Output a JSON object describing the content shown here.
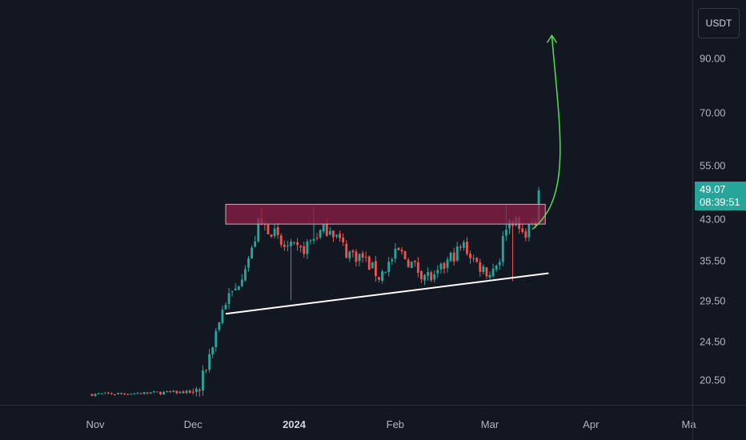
{
  "currency": "USDT",
  "price_axis": {
    "ticks": [
      {
        "label": "90.00",
        "value": 90
      },
      {
        "label": "70.00",
        "value": 70
      },
      {
        "label": "55.00",
        "value": 55
      },
      {
        "label": "43.00",
        "value": 43
      },
      {
        "label": "35.50",
        "value": 35.5
      },
      {
        "label": "29.50",
        "value": 29.5
      },
      {
        "label": "24.50",
        "value": 24.5
      },
      {
        "label": "20.50",
        "value": 20.5
      }
    ]
  },
  "time_axis": {
    "ticks": [
      {
        "label": "Nov",
        "date": "2023-11-01",
        "bold": false
      },
      {
        "label": "Dec",
        "date": "2023-12-01",
        "bold": false
      },
      {
        "label": "2024",
        "date": "2024-01-01",
        "bold": true
      },
      {
        "label": "Feb",
        "date": "2024-02-01",
        "bold": false
      },
      {
        "label": "Mar",
        "date": "2024-03-01",
        "bold": false
      },
      {
        "label": "Apr",
        "date": "2024-04-01",
        "bold": false
      },
      {
        "label": "Ma",
        "date": "2024-05-01",
        "bold": false
      }
    ]
  },
  "last_price": {
    "value": "49.07",
    "countdown": "08:39:51",
    "color": "#26a69a"
  },
  "colors": {
    "up": "#26a69a",
    "down": "#ef5350",
    "background": "#131722",
    "zone": "#8e1d46",
    "arrow": "#4ee44e",
    "trendline": "#ffffff"
  },
  "chart_data": {
    "type": "candlestick",
    "scale": "log",
    "start_date": "2023-10-31",
    "interval": "1D",
    "ohlc_note": "one candle per day from start_date: [open, high, low, close]",
    "ohlc": [],
    "resistance_zone": {
      "from_date": "2023-12-11",
      "to_date": "2024-03-18",
      "low": 42.0,
      "high": 46.0
    },
    "trendline": {
      "from": {
        "date": "2023-12-11",
        "price": 27.8
      },
      "to": {
        "date": "2024-03-19",
        "price": 33.5
      }
    },
    "projection_arrow": {
      "from": {
        "date": "2024-03-14",
        "price": 41.0
      },
      "to": {
        "date": "2024-03-20",
        "price": 100.0
      },
      "direction": "up"
    }
  }
}
